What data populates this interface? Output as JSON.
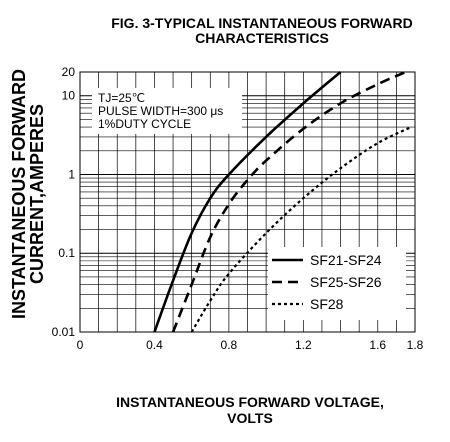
{
  "chart_data": {
    "type": "line",
    "title": [
      "FIG. 3-TYPICAL INSTANTANEOUS FORWARD",
      "CHARACTERISTICS"
    ],
    "xlabel": [
      "INSTANTANEOUS FORWARD VOLTAGE,",
      "VOLTS"
    ],
    "ylabel": [
      "INSTANTANEOUS FORWARD",
      "CURRENT,AMPERES"
    ],
    "xlim": [
      0,
      1.8
    ],
    "ylim": [
      0.01,
      20
    ],
    "y_scale": "log",
    "grid": true,
    "legend_position": "bottom-right",
    "x_ticks": [
      {
        "value": 0,
        "label": "0"
      },
      {
        "value": 0.4,
        "label": "0.4"
      },
      {
        "value": 0.8,
        "label": "0.8"
      },
      {
        "value": 1.2,
        "label": "1.2"
      },
      {
        "value": 1.6,
        "label": "1.6"
      },
      {
        "value": 1.8,
        "label": "1.8"
      }
    ],
    "y_ticks": [
      {
        "value": 0.01,
        "label": "0.01"
      },
      {
        "value": 0.1,
        "label": "0.1"
      },
      {
        "value": 1,
        "label": "1"
      },
      {
        "value": 10,
        "label": "10"
      },
      {
        "value": 20,
        "label": "20"
      }
    ],
    "annotations": [
      "TJ=25℃",
      "PULSE WIDTH=300 μs",
      "1%DUTY CYCLE"
    ],
    "series": [
      {
        "name": "SF21-SF24",
        "style": "solid",
        "points": [
          [
            0.4,
            0.01
          ],
          [
            0.5,
            0.045
          ],
          [
            0.6,
            0.18
          ],
          [
            0.7,
            0.5
          ],
          [
            0.8,
            1.0
          ],
          [
            1.0,
            3.0
          ],
          [
            1.2,
            8.0
          ],
          [
            1.4,
            20
          ]
        ]
      },
      {
        "name": "SF25-SF26",
        "style": "dashed",
        "points": [
          [
            0.5,
            0.01
          ],
          [
            0.6,
            0.04
          ],
          [
            0.7,
            0.16
          ],
          [
            0.8,
            0.42
          ],
          [
            0.9,
            0.85
          ],
          [
            1.0,
            1.5
          ],
          [
            1.2,
            3.8
          ],
          [
            1.4,
            8.0
          ],
          [
            1.6,
            14
          ],
          [
            1.75,
            20
          ]
        ]
      },
      {
        "name": "SF28",
        "style": "dotted",
        "points": [
          [
            0.6,
            0.01
          ],
          [
            0.7,
            0.025
          ],
          [
            0.8,
            0.055
          ],
          [
            1.0,
            0.18
          ],
          [
            1.2,
            0.5
          ],
          [
            1.4,
            1.2
          ],
          [
            1.6,
            2.5
          ],
          [
            1.78,
            4.0
          ]
        ]
      }
    ]
  }
}
